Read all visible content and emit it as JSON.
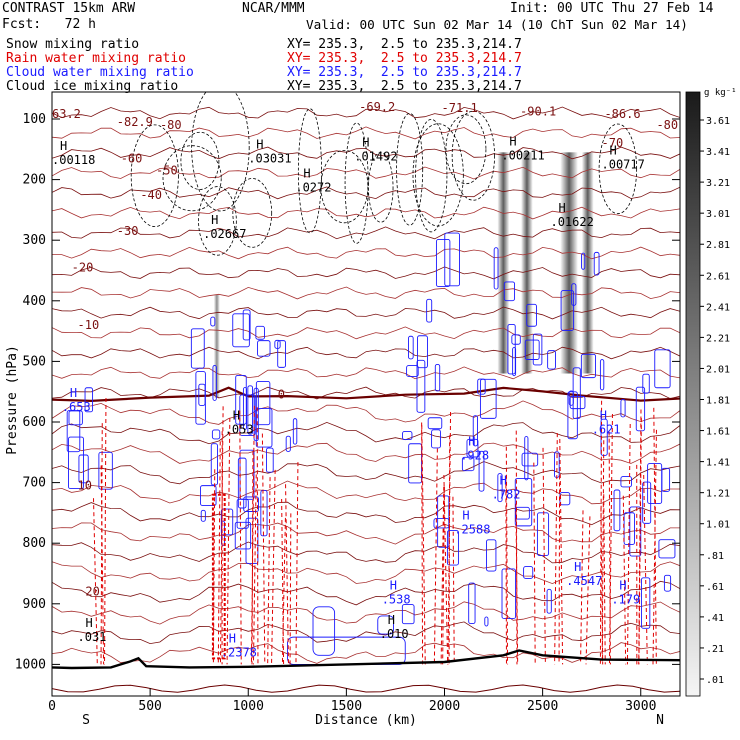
{
  "header": {
    "model": "CONTRAST 15km ARW",
    "center": "NCAR/MMM",
    "init": "Init: 00 UTC Thu 27 Feb 14",
    "fcst": "Fcst:   72 h",
    "valid": "Valid: 00 UTC Sun 02 Mar 14 (10 ChT Sun 02 Mar 14)",
    "legend": [
      {
        "name": "Snow mixing ratio",
        "color": "#000000",
        "xy": "XY= 235.3,  2.5 to 235.3,214.7"
      },
      {
        "name": "Rain water mixing ratio",
        "color": "#e00000",
        "xy": "XY= 235.3,  2.5 to 235.3,214.7"
      },
      {
        "name": "Cloud water mixing ratio",
        "color": "#1b1bff",
        "xy": "XY= 235.3,  2.5 to 235.3,214.7"
      },
      {
        "name": "Cloud ice mixing ratio",
        "color": "#000000",
        "xy": "XY= 235.3,  2.5 to 235.3,214.7"
      }
    ]
  },
  "chart_data": {
    "type": "heatmap",
    "xlabel": "Distance (km)",
    "ylabel": "Pressure (hPa)",
    "xlim": [
      0,
      3200
    ],
    "ylim": [
      1050,
      50
    ],
    "x_ticks": [
      0,
      500,
      1000,
      1500,
      2000,
      2500,
      3000
    ],
    "y_ticks": [
      100,
      200,
      300,
      400,
      500,
      600,
      700,
      800,
      900,
      1000
    ],
    "x_end_labels": {
      "left": "S",
      "right": "N"
    },
    "colorbar": {
      "unit": "g kg⁻¹",
      "ticks": [
        "3.61",
        "3.41",
        "3.21",
        "3.01",
        "2.81",
        "2.61",
        "2.41",
        "2.21",
        "2.01",
        "1.81",
        "1.61",
        "1.41",
        "1.21",
        "1.01",
        ".81",
        ".61",
        ".41",
        ".21",
        ".01"
      ]
    },
    "temperature_contours": [
      {
        "label": "-80",
        "x": 550,
        "p": 110
      },
      {
        "label": "-70",
        "x": 2800,
        "p": 140
      },
      {
        "label": "-60",
        "x": 350,
        "p": 165
      },
      {
        "label": "-50",
        "x": 530,
        "p": 185
      },
      {
        "label": "-40",
        "x": 450,
        "p": 225
      },
      {
        "label": "-30",
        "x": 330,
        "p": 285
      },
      {
        "label": "-20",
        "x": 100,
        "p": 345
      },
      {
        "label": "-10",
        "x": 130,
        "p": 440
      },
      {
        "label": "0",
        "x": 1150,
        "p": 555
      },
      {
        "label": "10",
        "x": 130,
        "p": 705
      },
      {
        "label": "20",
        "x": 170,
        "p": 880
      }
    ],
    "pressure_level_labels": [
      {
        "label": "-69.2",
        "x": 1565,
        "p": 80
      },
      {
        "label": "-71.1",
        "x": 1985,
        "p": 82
      },
      {
        "label": "-90.1",
        "x": 2385,
        "p": 88
      },
      {
        "label": "-86.6",
        "x": 2815,
        "p": 92
      },
      {
        "label": "-82.9",
        "x": 330,
        "p": 105
      },
      {
        "label": "-80",
        "x": 3080,
        "p": 110
      },
      {
        "label": "63.2",
        "x": 0,
        "p": 92
      }
    ],
    "maxima_labels": [
      {
        "label": ".00118",
        "x": 0,
        "p": 168
      },
      {
        "label": ".03031",
        "x": 1000,
        "p": 165
      },
      {
        "label": ".01492",
        "x": 1540,
        "p": 162
      },
      {
        "label": ".00211",
        "x": 2290,
        "p": 160
      },
      {
        "label": ".00717",
        "x": 2800,
        "p": 175
      },
      {
        "label": ".0272",
        "x": 1240,
        "p": 213
      },
      {
        "label": ".02667",
        "x": 770,
        "p": 290
      },
      {
        "label": ".01622",
        "x": 2540,
        "p": 270
      },
      {
        "label": ".653",
        "x": 50,
        "p": 575
      },
      {
        "label": ".053",
        "x": 880,
        "p": 612
      },
      {
        "label": ".621",
        "x": 2750,
        "p": 612
      },
      {
        "label": ".928",
        "x": 2080,
        "p": 655
      },
      {
        "label": ".782",
        "x": 2240,
        "p": 720
      },
      {
        "label": ".538",
        "x": 1680,
        "p": 893
      },
      {
        "label": ".4547",
        "x": 2620,
        "p": 862
      },
      {
        "label": ".179",
        "x": 2850,
        "p": 893
      },
      {
        "label": ".031",
        "x": 130,
        "p": 955
      },
      {
        "label": ".2588",
        "x": 2050,
        "p": 777
      },
      {
        "label": ".2378",
        "x": 860,
        "p": 980
      },
      {
        "label": ".010",
        "x": 1670,
        "p": 950
      }
    ],
    "cloud_water_regions_km": [
      [
        60,
        290
      ],
      [
        730,
        1260
      ],
      [
        1810,
        3180
      ]
    ],
    "rain_regions_km": [
      [
        180,
        280
      ],
      [
        780,
        1300
      ],
      [
        1880,
        3100
      ]
    ],
    "cloud_ice_columns_km": [
      [
        2270,
        2330
      ],
      [
        2390,
        2450
      ],
      [
        2590,
        2680
      ],
      [
        2700,
        2760
      ]
    ],
    "freezing_level": [
      [
        0,
        563
      ],
      [
        200,
        565
      ],
      [
        500,
        560
      ],
      [
        800,
        556
      ],
      [
        900,
        544
      ],
      [
        1000,
        557
      ],
      [
        1200,
        558
      ],
      [
        1500,
        560
      ],
      [
        1800,
        556
      ],
      [
        2100,
        552
      ],
      [
        2300,
        545
      ],
      [
        2500,
        548
      ],
      [
        2700,
        558
      ],
      [
        3000,
        563
      ],
      [
        3200,
        563
      ]
    ],
    "terrain": [
      [
        0,
        1005
      ],
      [
        100,
        1006
      ],
      [
        300,
        1005
      ],
      [
        400,
        995
      ],
      [
        440,
        990
      ],
      [
        480,
        1003
      ],
      [
        700,
        1005
      ],
      [
        1000,
        1004
      ],
      [
        1500,
        1000
      ],
      [
        2000,
        996
      ],
      [
        2300,
        985
      ],
      [
        2380,
        977
      ],
      [
        2500,
        985
      ],
      [
        2800,
        992
      ],
      [
        3200,
        993
      ]
    ]
  }
}
